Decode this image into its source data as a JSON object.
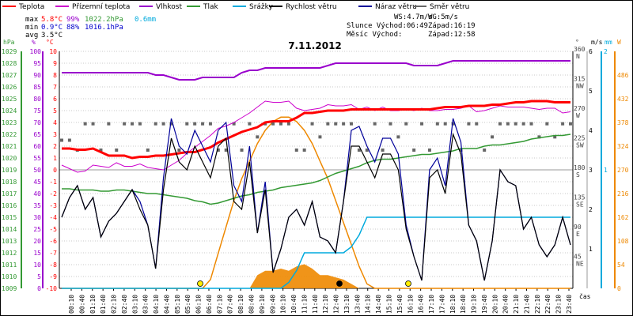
{
  "chart_data": {
    "type": "line",
    "title": "7.11.2012",
    "legend": [
      {
        "name": "Teplota",
        "color": "#ff0000"
      },
      {
        "name": "Přízemní teplota",
        "color": "#cc00cc"
      },
      {
        "name": "Vlhkost",
        "color": "#9900cc"
      },
      {
        "name": "Tlak",
        "color": "#339933"
      },
      {
        "name": "Srážky",
        "color": "#00aadd"
      },
      {
        "name": "Rychlost větru",
        "color": "#000000"
      },
      {
        "name": "Náraz větru",
        "color": "#000099"
      },
      {
        "name": "Směr větru",
        "color": "#666666"
      }
    ],
    "stats": {
      "max_label": "max",
      "max_temp": "5.8°C",
      "max_hum": "99%",
      "max_press": "1022.2hPa",
      "rain": "0.6mm",
      "min_label": "min",
      "min_temp": "0.9°C",
      "min_hum": "88%",
      "min_press": "1016.1hPa",
      "avg_label": "avg",
      "avg_temp": "3.5°C"
    },
    "info": {
      "ws": "WS:4.7m/s",
      "wg": "WG:5m/s",
      "sunrise": "Slunce Východ:06:49",
      "sunset": "Západ:16:19",
      "moonrise": "Měsíc  Východ:",
      "moonset": "Západ:12:58"
    },
    "axes": {
      "hpa": {
        "label": "hPa",
        "ticks": [
          "1029",
          "1028",
          "1027",
          "1026",
          "1025",
          "1024",
          "1023",
          "1022",
          "1021",
          "1020",
          "1019",
          "1018",
          "1017",
          "1016",
          "1015",
          "1014",
          "1013",
          "1012",
          "1011",
          "1010",
          "1009"
        ],
        "color": "#339933"
      },
      "pct": {
        "label": "%",
        "ticks": [
          "100",
          "95",
          "90",
          "85",
          "80",
          "75",
          "70",
          "65",
          "60",
          "55",
          "50",
          "45",
          "40",
          "35",
          "30",
          "25",
          "20",
          "15",
          "10",
          "5",
          "0"
        ],
        "color": "#9900cc"
      },
      "degc": {
        "label": "°C",
        "ticks": [
          "10",
          "9",
          "8",
          "7",
          "6",
          "5",
          "4",
          "3",
          "2",
          "1",
          "0",
          "-1",
          "-2",
          "-3",
          "-4",
          "-5",
          "-6",
          "-7",
          "-8",
          "-9",
          "-10"
        ],
        "color": "#ff0000"
      },
      "dir": {
        "label": "°",
        "ticks": [
          {
            "v": "360",
            "t": "N"
          },
          {
            "v": "315",
            "t": "NW"
          },
          {
            "v": "270",
            "t": "W"
          },
          {
            "v": "225",
            "t": "SW"
          },
          {
            "v": "180",
            "t": "S"
          },
          {
            "v": "135",
            "t": "SE"
          },
          {
            "v": "90",
            "t": "E"
          },
          {
            "v": "45",
            "t": "NE"
          }
        ],
        "color": "#444444"
      },
      "ms": {
        "label": "m/s",
        "ticks": [
          "6",
          "5",
          "4",
          "3",
          "2",
          "1"
        ],
        "color": "#000000"
      },
      "mm": {
        "label": "mm",
        "ticks": [
          "2",
          "1"
        ],
        "color": "#00aadd"
      },
      "wm2": {
        "label": "W",
        "ticks": [
          "486",
          "432",
          "378",
          "324",
          "270",
          "216",
          "162",
          "108",
          "54",
          "0"
        ],
        "color": "#ee8800"
      },
      "x_label": "čas",
      "x_ticks": [
        "00:10",
        "00:40",
        "01:10",
        "01:40",
        "02:10",
        "02:40",
        "03:10",
        "03:40",
        "04:10",
        "04:40",
        "05:10",
        "05:40",
        "06:10",
        "06:40",
        "07:10",
        "07:40",
        "08:10",
        "08:40",
        "09:10",
        "09:40",
        "10:10",
        "10:40",
        "11:10",
        "11:40",
        "12:10",
        "12:40",
        "13:10",
        "13:40",
        "14:10",
        "14:40",
        "15:10",
        "15:40",
        "16:10",
        "16:40",
        "17:10",
        "17:40",
        "18:10",
        "18:40",
        "19:10",
        "19:40",
        "20:10",
        "20:40",
        "21:10",
        "21:40",
        "22:10",
        "22:40",
        "23:10",
        "23:40"
      ]
    },
    "series": {
      "temperature_c": [
        1.8,
        1.8,
        1.7,
        1.7,
        1.8,
        1.5,
        1.2,
        1.2,
        1.2,
        1.0,
        1.1,
        1.1,
        1.2,
        1.2,
        1.3,
        1.4,
        1.5,
        1.5,
        1.7,
        1.9,
        2.3,
        2.6,
        2.9,
        3.2,
        3.4,
        3.6,
        4.0,
        4.1,
        4.1,
        4.1,
        4.4,
        4.8,
        4.8,
        4.9,
        5.0,
        5.0,
        5.0,
        5.1,
        5.1,
        5.1,
        5.1,
        5.1,
        5.1,
        5.1,
        5.1,
        5.1,
        5.1,
        5.1,
        5.2,
        5.3,
        5.3,
        5.3,
        5.4,
        5.4,
        5.4,
        5.5,
        5.5,
        5.6,
        5.7,
        5.7,
        5.8,
        5.8,
        5.8,
        5.7,
        5.7,
        5.7
      ],
      "ground_temp_c": [
        0.4,
        0.1,
        -0.2,
        -0.1,
        0.4,
        0.3,
        0.2,
        0.6,
        0.3,
        0.3,
        0.5,
        0.2,
        0.1,
        0.0,
        0.4,
        0.8,
        1.4,
        1.9,
        2.4,
        2.9,
        3.5,
        3.7,
        4.0,
        4.4,
        4.8,
        5.3,
        5.8,
        5.7,
        5.7,
        5.8,
        5.2,
        5.0,
        5.1,
        5.2,
        5.5,
        5.4,
        5.4,
        5.5,
        5.1,
        5.3,
        5.0,
        5.3,
        5.0,
        5.0,
        5.1,
        5.0,
        5.2,
        5.0,
        5.0,
        5.1,
        5.1,
        5.2,
        5.4,
        4.9,
        5.0,
        5.2,
        5.4,
        5.3,
        5.3,
        5.3,
        5.2,
        5.1,
        5.2,
        5.2,
        4.8,
        4.9
      ],
      "humidity_pct": [
        91,
        91,
        91,
        91,
        91,
        91,
        91,
        91,
        91,
        91,
        91,
        91,
        90,
        90,
        89,
        88,
        88,
        88,
        89,
        89,
        89,
        89,
        89,
        91,
        92,
        92,
        93,
        93,
        93,
        93,
        93,
        93,
        93,
        93,
        94,
        95,
        95,
        95,
        95,
        95,
        95,
        95,
        95,
        95,
        95,
        94,
        94,
        94,
        94,
        95,
        96,
        96,
        96,
        96,
        96,
        96,
        96,
        96,
        96,
        96,
        96,
        96,
        96,
        96,
        96,
        96
      ],
      "pressure_hpa": [
        1017.4,
        1017.4,
        1017.3,
        1017.3,
        1017.3,
        1017.2,
        1017.2,
        1017.3,
        1017.3,
        1017.2,
        1017.1,
        1017.0,
        1017.0,
        1016.9,
        1016.8,
        1016.7,
        1016.6,
        1016.4,
        1016.3,
        1016.1,
        1016.2,
        1016.4,
        1016.6,
        1016.8,
        1016.9,
        1017.1,
        1017.2,
        1017.3,
        1017.5,
        1017.6,
        1017.7,
        1017.8,
        1017.9,
        1018.1,
        1018.4,
        1018.7,
        1018.9,
        1019.1,
        1019.3,
        1019.6,
        1019.8,
        1019.9,
        1019.9,
        1020.0,
        1020.1,
        1020.2,
        1020.3,
        1020.3,
        1020.4,
        1020.5,
        1020.6,
        1020.8,
        1020.8,
        1020.8,
        1021.0,
        1021.1,
        1021.1,
        1021.2,
        1021.3,
        1021.4,
        1021.6,
        1021.7,
        1021.8,
        1021.9,
        1021.9,
        1022.0
      ],
      "rain_mm": [
        0,
        0,
        0,
        0,
        0,
        0,
        0,
        0,
        0,
        0,
        0,
        0,
        0,
        0,
        0,
        0,
        0,
        0,
        0,
        0,
        0,
        0,
        0,
        0,
        0,
        0,
        0,
        0,
        0,
        0.05,
        0.15,
        0.3,
        0.3,
        0.3,
        0.3,
        0.3,
        0.3,
        0.35,
        0.45,
        0.6,
        0.6,
        0.6,
        0.6,
        0.6,
        0.6,
        0.6,
        0.6,
        0.6,
        0.6,
        0.6,
        0.6,
        0.6,
        0.6,
        0.6,
        0.6,
        0.6,
        0.6,
        0.6,
        0.6,
        0.6,
        0.6,
        0.6,
        0.6,
        0.6,
        0.6,
        0.6
      ],
      "wind_ms": [
        1.8,
        2.3,
        2.6,
        2.0,
        2.3,
        1.3,
        1.7,
        1.9,
        2.2,
        2.5,
        2.0,
        1.6,
        0.5,
        2.5,
        3.8,
        3.2,
        3.0,
        3.6,
        3.2,
        2.8,
        3.6,
        3.8,
        2.2,
        2.0,
        3.2,
        1.4,
        2.5,
        0.4,
        1.0,
        1.8,
        2.0,
        1.6,
        2.2,
        1.3,
        1.2,
        0.9,
        2.2,
        3.6,
        3.6,
        3.2,
        2.8,
        3.4,
        3.4,
        3.0,
        1.5,
        0.8,
        0.2,
        2.8,
        3.0,
        2.4,
        3.9,
        3.4,
        1.6,
        1.2,
        0.2,
        1.2,
        3.0,
        2.7,
        2.6,
        1.5,
        1.8,
        1.1,
        0.8,
        1.1,
        1.8,
        1.1
      ],
      "gust_ms": [
        1.8,
        2.3,
        2.6,
        2.0,
        2.3,
        1.3,
        1.7,
        1.9,
        2.2,
        2.5,
        2.2,
        1.6,
        0.5,
        2.8,
        4.3,
        3.6,
        3.4,
        4.0,
        3.6,
        3.2,
        4.0,
        4.2,
        2.6,
        2.2,
        3.6,
        1.4,
        2.7,
        0.4,
        1.0,
        1.8,
        2.0,
        1.6,
        2.2,
        1.3,
        1.2,
        0.9,
        2.2,
        4.0,
        4.1,
        3.6,
        3.2,
        3.8,
        3.8,
        3.4,
        1.6,
        0.8,
        0.2,
        3.0,
        3.3,
        2.6,
        4.3,
        3.7,
        1.6,
        1.2,
        0.2,
        1.2,
        3.0,
        2.7,
        2.6,
        1.5,
        1.8,
        1.1,
        0.8,
        1.1,
        1.8,
        1.1
      ],
      "wind_dir_deg": [
        225,
        225,
        210,
        250,
        250,
        210,
        250,
        210,
        250,
        250,
        250,
        210,
        250,
        250,
        250,
        210,
        250,
        250,
        250,
        250,
        210,
        210,
        250,
        210,
        250,
        230,
        250,
        250,
        250,
        250,
        210,
        210,
        250,
        230,
        250,
        250,
        250,
        250,
        210,
        210,
        250,
        210,
        250,
        230,
        250,
        210,
        250,
        210,
        250,
        250,
        250,
        210,
        250,
        250,
        210,
        230,
        250,
        250,
        250,
        250,
        250,
        230,
        250,
        230,
        250,
        250
      ],
      "solar_wm2": [
        0,
        0,
        0,
        0,
        0,
        0,
        0,
        0,
        0,
        0,
        0,
        0,
        0,
        0,
        0,
        0,
        0,
        0,
        0,
        20,
        80,
        140,
        200,
        250,
        290,
        330,
        360,
        380,
        390,
        390,
        380,
        360,
        330,
        290,
        250,
        200,
        150,
        100,
        50,
        10,
        0,
        0,
        0,
        0,
        0,
        0,
        0,
        0,
        0,
        0,
        0,
        0,
        0,
        0,
        0,
        0,
        0,
        0,
        0,
        0,
        0,
        0,
        0,
        0,
        0,
        0
      ],
      "solar_measured_wm2": [
        0,
        0,
        0,
        0,
        0,
        0,
        0,
        0,
        0,
        0,
        0,
        0,
        0,
        0,
        0,
        0,
        0,
        0,
        0,
        0,
        0,
        0,
        0,
        0,
        0,
        30,
        40,
        40,
        45,
        40,
        50,
        55,
        45,
        30,
        30,
        25,
        20,
        10,
        0,
        0,
        0,
        0,
        0,
        0,
        0,
        0,
        0,
        0,
        0,
        0,
        0,
        0,
        0,
        0,
        0,
        0,
        0,
        0,
        0,
        0,
        0,
        0,
        0,
        0,
        0,
        0
      ]
    }
  }
}
